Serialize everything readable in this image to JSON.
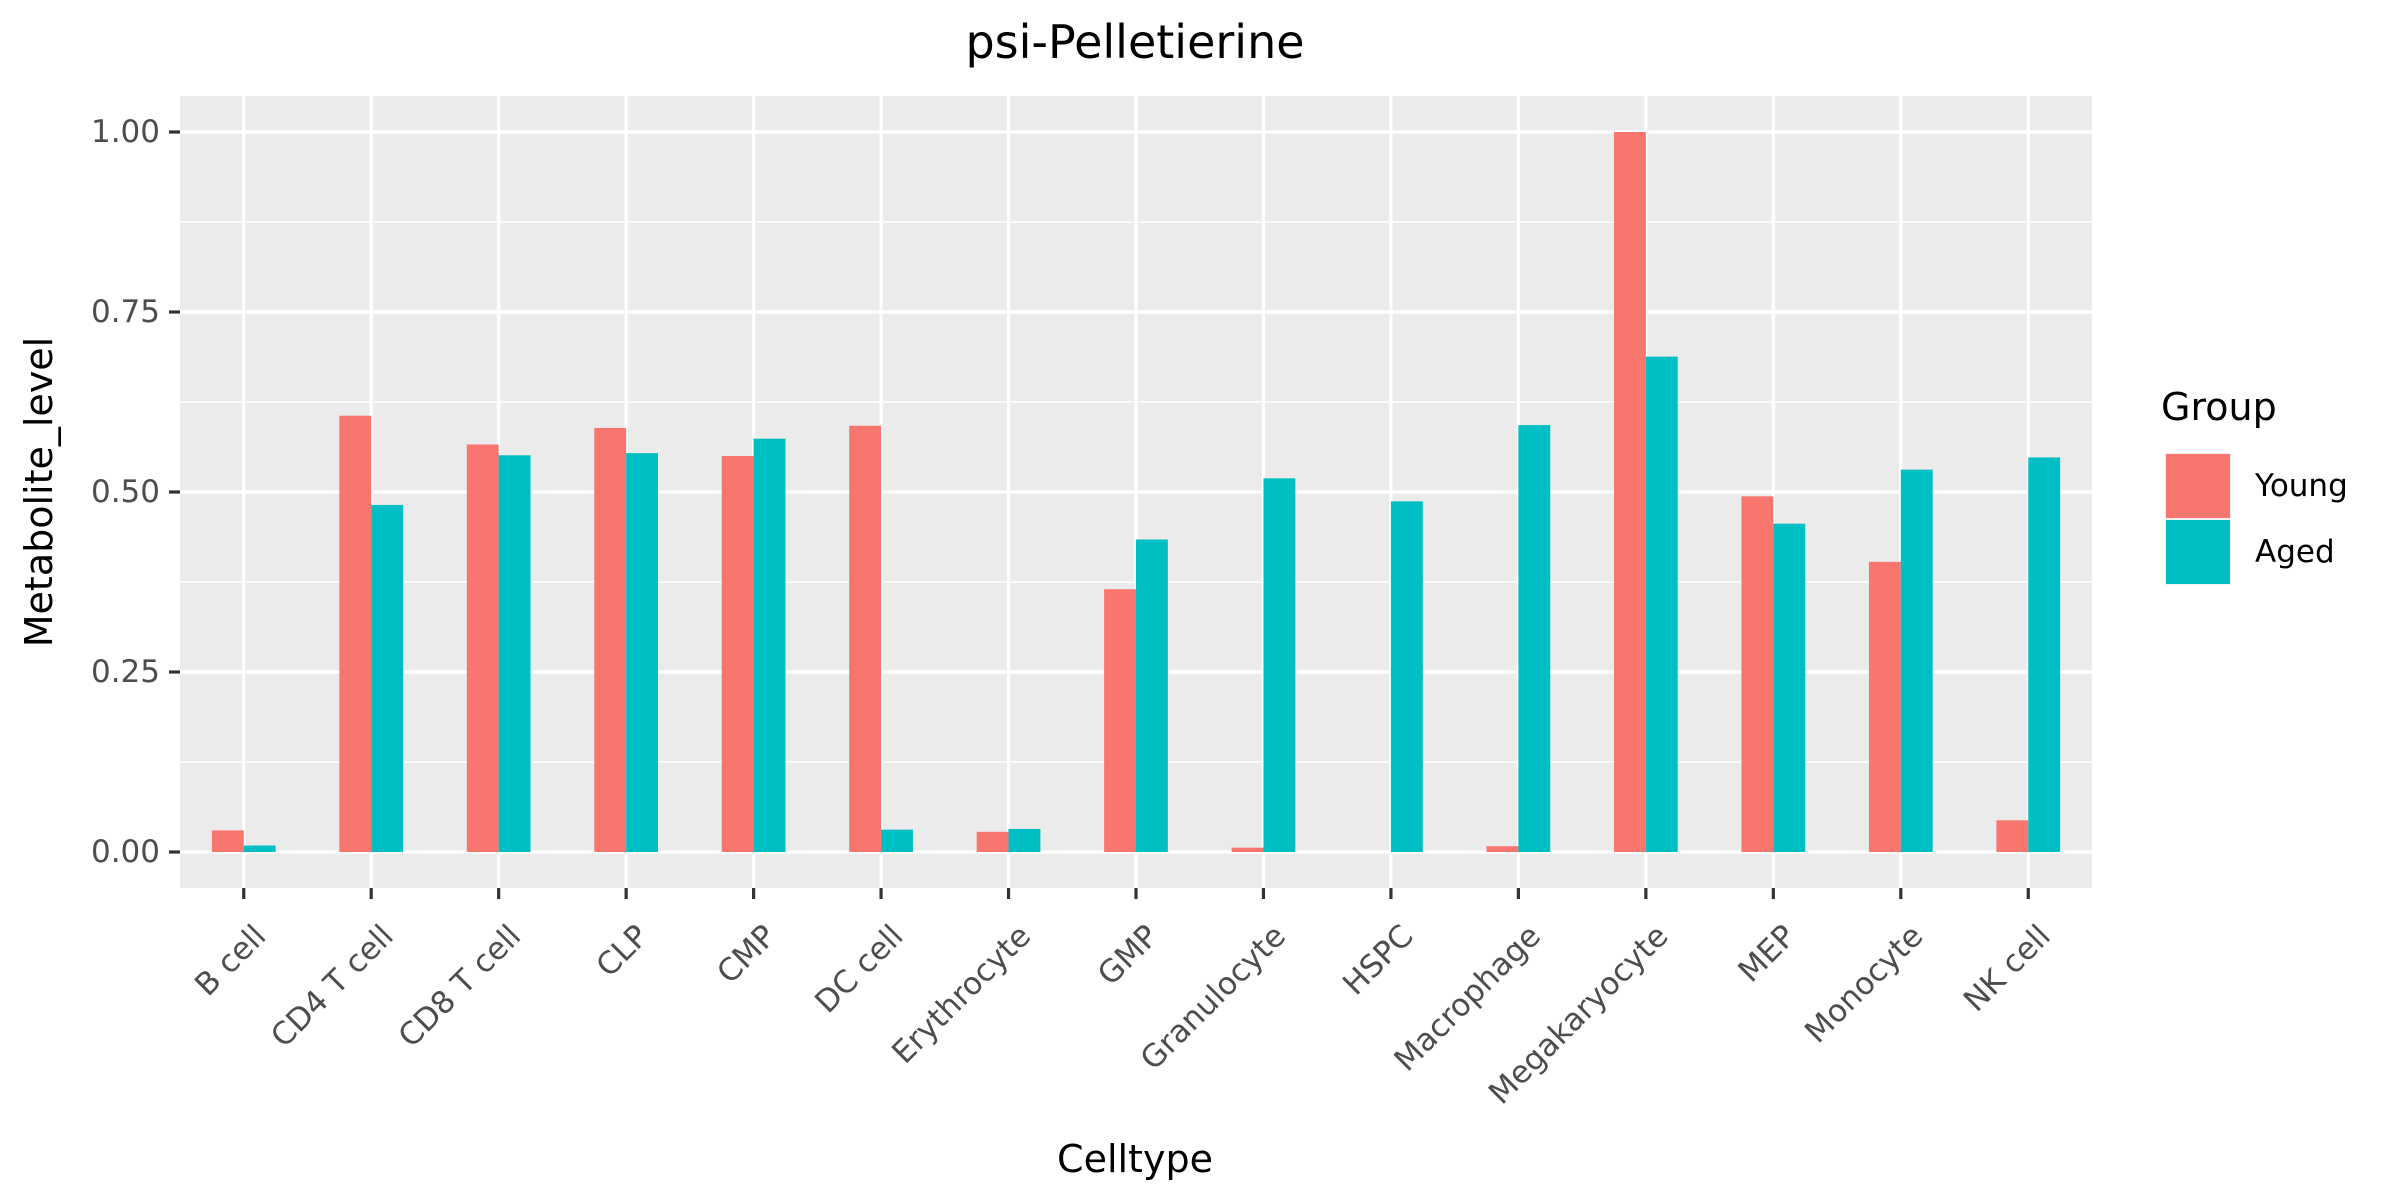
{
  "chart_data": {
    "type": "bar",
    "title": "psi-Pelletierine",
    "xlabel": "Celltype",
    "ylabel": "Metabolite_level",
    "ylim": [
      -0.05,
      1.05
    ],
    "yticks": [
      0.0,
      0.25,
      0.5,
      0.75,
      1.0
    ],
    "ytick_labels": [
      "0.00",
      "0.25",
      "0.50",
      "0.75",
      "1.00"
    ],
    "grid": true,
    "legend_position": "right",
    "legend_title": "Group",
    "categories": [
      "B cell",
      "CD4 T cell",
      "CD8 T cell",
      "CLP",
      "CMP",
      "DC cell",
      "Erythrocyte",
      "GMP",
      "Granulocyte",
      "HSPC",
      "Macrophage",
      "Megakaryocyte",
      "MEP",
      "Monocyte",
      "NK cell"
    ],
    "series": [
      {
        "name": "Young",
        "color": "#F8766D",
        "values": [
          0.03,
          0.606,
          0.566,
          0.589,
          0.55,
          0.592,
          0.028,
          0.365,
          0.006,
          0.0,
          0.008,
          1.0,
          0.494,
          0.403,
          0.044
        ]
      },
      {
        "name": "Aged",
        "color": "#00BFC4",
        "values": [
          0.009,
          0.482,
          0.551,
          0.554,
          0.574,
          0.031,
          0.032,
          0.434,
          0.519,
          0.487,
          0.593,
          0.688,
          0.456,
          0.531,
          0.548
        ]
      }
    ]
  }
}
